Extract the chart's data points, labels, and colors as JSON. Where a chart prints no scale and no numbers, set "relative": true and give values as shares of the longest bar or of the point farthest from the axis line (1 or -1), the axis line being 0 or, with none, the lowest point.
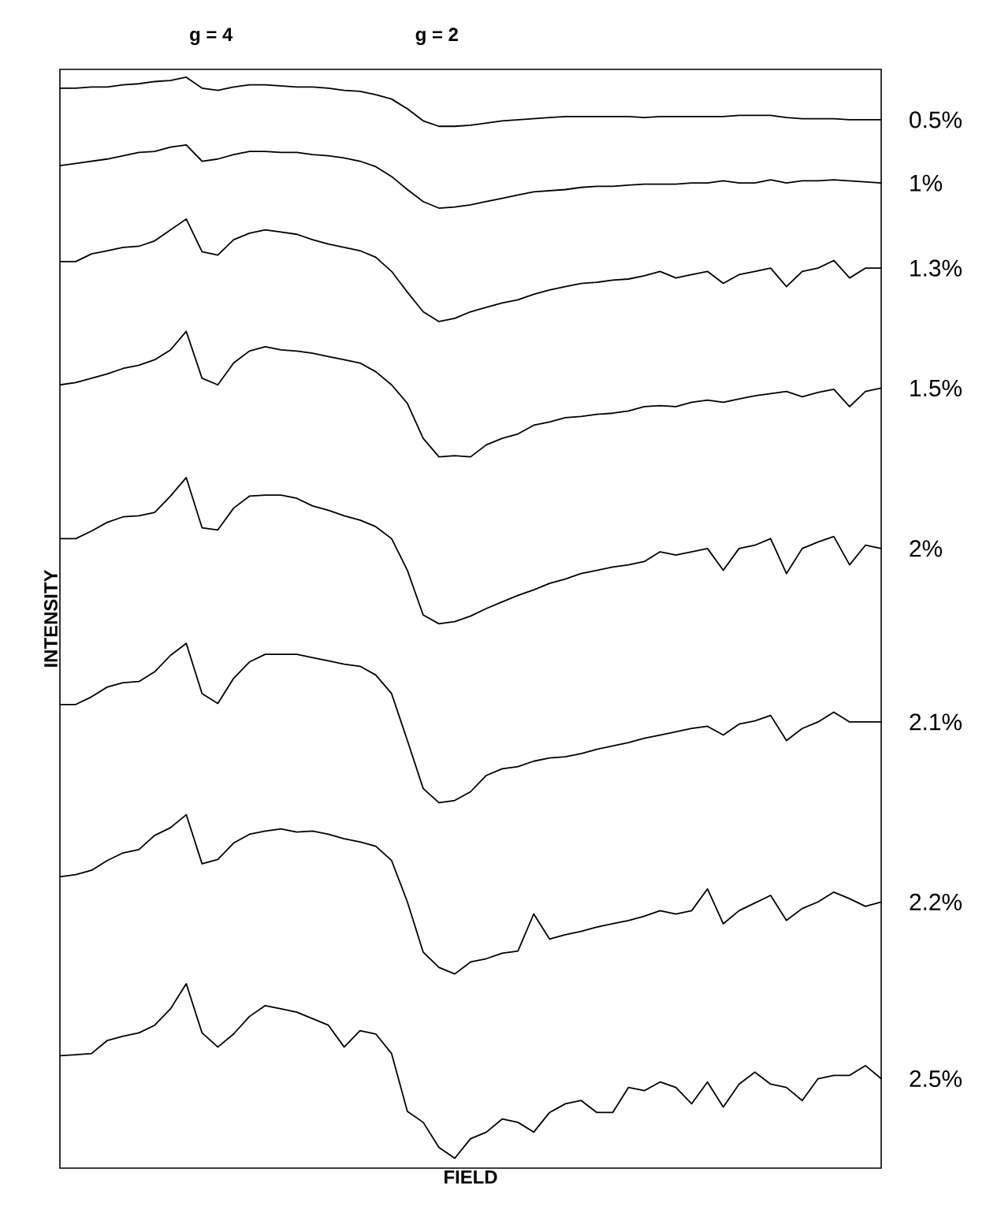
{
  "chart_data": {
    "type": "line",
    "relative": true,
    "xlabel": "FIELD",
    "ylabel": "INTENSITY",
    "annotations": [
      "g = 4",
      "g = 2"
    ],
    "categories": [
      null,
      null,
      null,
      null,
      null,
      null,
      null,
      null,
      null,
      null,
      null,
      null,
      null,
      null,
      null,
      null,
      null,
      null,
      null,
      null,
      null,
      null,
      null,
      null,
      null,
      null,
      null,
      null,
      null,
      null,
      null,
      null,
      null,
      null,
      null,
      null,
      null,
      null,
      null,
      null,
      null,
      null,
      null,
      null,
      null,
      null,
      null,
      null,
      null,
      null,
      null,
      null,
      null
    ],
    "series": [
      {
        "name": "0.5%",
        "color": "#000000",
        "values": [
          0.99,
          0.99,
          0.991,
          0.991,
          0.993,
          0.994,
          0.996,
          0.997,
          1.0,
          0.99,
          0.988,
          0.991,
          0.993,
          0.993,
          0.992,
          0.991,
          0.991,
          0.99,
          0.988,
          0.987,
          0.984,
          0.98,
          0.971,
          0.96,
          0.955,
          0.955,
          0.956,
          0.958,
          0.96,
          0.961,
          0.962,
          0.963,
          0.964,
          0.964,
          0.964,
          0.964,
          0.964,
          0.963,
          0.964,
          0.964,
          0.964,
          0.964,
          0.964,
          0.965,
          0.965,
          0.965,
          0.963,
          0.962,
          0.962,
          0.962,
          0.961,
          0.961,
          0.961
        ]
      },
      {
        "name": "1%",
        "color": "#000000",
        "values": [
          0.919,
          0.921,
          0.923,
          0.925,
          0.928,
          0.931,
          0.932,
          0.936,
          0.938,
          0.923,
          0.925,
          0.929,
          0.932,
          0.932,
          0.931,
          0.931,
          0.929,
          0.928,
          0.926,
          0.923,
          0.918,
          0.909,
          0.897,
          0.886,
          0.88,
          0.881,
          0.883,
          0.886,
          0.889,
          0.892,
          0.895,
          0.896,
          0.897,
          0.899,
          0.9,
          0.9,
          0.901,
          0.902,
          0.902,
          0.902,
          0.903,
          0.903,
          0.905,
          0.903,
          0.903,
          0.906,
          0.903,
          0.905,
          0.905,
          0.906,
          0.905,
          0.904,
          0.903
        ]
      },
      {
        "name": "1.3%",
        "color": "#000000",
        "values": [
          0.831,
          0.831,
          0.838,
          0.841,
          0.844,
          0.845,
          0.85,
          0.86,
          0.87,
          0.84,
          0.837,
          0.851,
          0.857,
          0.86,
          0.858,
          0.856,
          0.851,
          0.847,
          0.844,
          0.841,
          0.835,
          0.822,
          0.803,
          0.785,
          0.776,
          0.779,
          0.785,
          0.789,
          0.793,
          0.796,
          0.801,
          0.805,
          0.808,
          0.811,
          0.812,
          0.814,
          0.815,
          0.818,
          0.822,
          0.816,
          0.819,
          0.822,
          0.811,
          0.819,
          0.822,
          0.825,
          0.808,
          0.822,
          0.825,
          0.832,
          0.816,
          0.825,
          0.825
        ]
      },
      {
        "name": "1.5%",
        "color": "#000000",
        "values": [
          0.718,
          0.72,
          0.724,
          0.728,
          0.733,
          0.736,
          0.741,
          0.75,
          0.767,
          0.724,
          0.718,
          0.738,
          0.749,
          0.753,
          0.75,
          0.749,
          0.747,
          0.744,
          0.741,
          0.738,
          0.73,
          0.718,
          0.701,
          0.669,
          0.652,
          0.653,
          0.652,
          0.663,
          0.669,
          0.673,
          0.681,
          0.684,
          0.688,
          0.689,
          0.691,
          0.692,
          0.694,
          0.698,
          0.699,
          0.698,
          0.702,
          0.704,
          0.702,
          0.705,
          0.708,
          0.71,
          0.712,
          0.707,
          0.711,
          0.714,
          0.698,
          0.712,
          0.715
        ]
      },
      {
        "name": "2%",
        "color": "#000000",
        "values": [
          0.577,
          0.577,
          0.584,
          0.592,
          0.597,
          0.598,
          0.601,
          0.616,
          0.633,
          0.587,
          0.585,
          0.605,
          0.616,
          0.617,
          0.617,
          0.614,
          0.607,
          0.603,
          0.598,
          0.594,
          0.588,
          0.577,
          0.548,
          0.507,
          0.499,
          0.501,
          0.506,
          0.513,
          0.519,
          0.525,
          0.53,
          0.536,
          0.54,
          0.545,
          0.548,
          0.551,
          0.553,
          0.556,
          0.565,
          0.562,
          0.565,
          0.568,
          0.548,
          0.568,
          0.571,
          0.577,
          0.545,
          0.568,
          0.574,
          0.579,
          0.553,
          0.571,
          0.568
        ]
      },
      {
        "name": "2.1%",
        "color": "#000000",
        "values": [
          0.425,
          0.425,
          0.432,
          0.441,
          0.445,
          0.446,
          0.455,
          0.47,
          0.481,
          0.435,
          0.426,
          0.449,
          0.464,
          0.471,
          0.471,
          0.471,
          0.468,
          0.465,
          0.462,
          0.46,
          0.452,
          0.435,
          0.392,
          0.348,
          0.335,
          0.337,
          0.345,
          0.36,
          0.366,
          0.368,
          0.373,
          0.376,
          0.377,
          0.38,
          0.384,
          0.387,
          0.39,
          0.394,
          0.397,
          0.4,
          0.403,
          0.405,
          0.397,
          0.407,
          0.41,
          0.415,
          0.392,
          0.403,
          0.409,
          0.418,
          0.409,
          0.409,
          0.409
        ]
      },
      {
        "name": "2.2%",
        "color": "#000000",
        "values": [
          0.267,
          0.269,
          0.273,
          0.282,
          0.289,
          0.292,
          0.305,
          0.312,
          0.324,
          0.279,
          0.283,
          0.298,
          0.306,
          0.309,
          0.311,
          0.308,
          0.309,
          0.306,
          0.302,
          0.299,
          0.295,
          0.282,
          0.244,
          0.198,
          0.184,
          0.178,
          0.189,
          0.192,
          0.197,
          0.199,
          0.233,
          0.21,
          0.214,
          0.217,
          0.221,
          0.224,
          0.227,
          0.231,
          0.236,
          0.233,
          0.236,
          0.256,
          0.224,
          0.236,
          0.243,
          0.25,
          0.227,
          0.238,
          0.244,
          0.253,
          0.247,
          0.24,
          0.244
        ]
      },
      {
        "name": "2.5%",
        "color": "#000000",
        "values": [
          0.103,
          0.104,
          0.105,
          0.117,
          0.121,
          0.124,
          0.131,
          0.146,
          0.169,
          0.124,
          0.111,
          0.123,
          0.139,
          0.149,
          0.146,
          0.143,
          0.137,
          0.131,
          0.111,
          0.126,
          0.123,
          0.105,
          0.052,
          0.042,
          0.019,
          0.009,
          0.027,
          0.033,
          0.045,
          0.042,
          0.033,
          0.051,
          0.059,
          0.062,
          0.051,
          0.051,
          0.074,
          0.071,
          0.079,
          0.074,
          0.059,
          0.079,
          0.056,
          0.077,
          0.088,
          0.077,
          0.074,
          0.062,
          0.082,
          0.085,
          0.085,
          0.094,
          0.082
        ]
      }
    ]
  }
}
